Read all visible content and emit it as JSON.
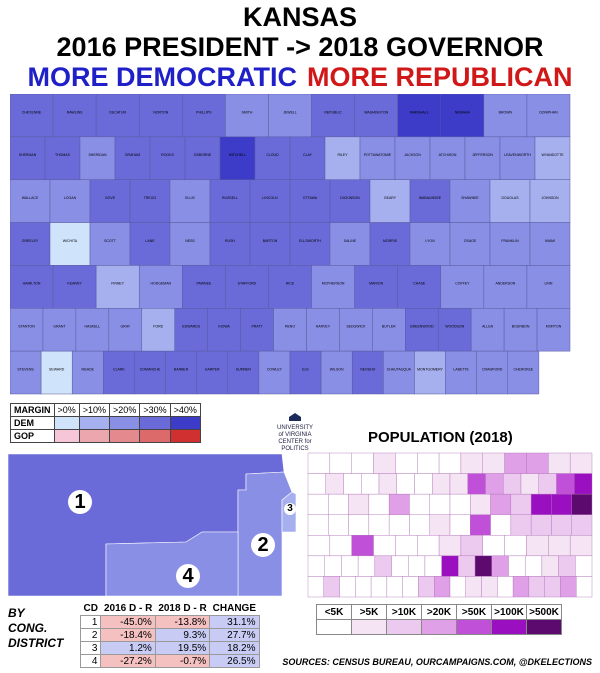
{
  "title": {
    "line1": "KANSAS",
    "line2": "2016 PRESIDENT -> 2018 GOVERNOR",
    "more_dem": "MORE DEMOCRATIC",
    "more_gop": "MORE REPUBLICAN"
  },
  "colors": {
    "dem_0": "#cfe3fb",
    "dem_10": "#a6b0ee",
    "dem_20": "#8a8fe6",
    "dem_30": "#6a6ad8",
    "dem_40": "#3c3cc8",
    "gop_0": "#f6c6d8",
    "gop_10": "#eca6ad",
    "gop_20": "#e48a8e",
    "gop_30": "#dc6a6a",
    "gop_40": "#d03030",
    "pop_5k_less": "#ffffff",
    "pop_5k": "#f4e4f4",
    "pop_10k": "#eccaf0",
    "pop_20k": "#e0a0e8",
    "pop_50k": "#c050d8",
    "pop_100k": "#9a10c0",
    "pop_500k": "#5c0a6e"
  },
  "legend": {
    "margin_label": "MARGIN",
    "dem_label": "DEM",
    "gop_label": "GOP",
    "bins": [
      ">0%",
      ">10%",
      ">20%",
      ">30%",
      ">40%"
    ]
  },
  "logo_text": "UNIVERSITY of VIRGINIA CENTER for POLITICS",
  "population": {
    "title": "POPULATION (2018)",
    "bins": [
      "<5K",
      ">5K",
      ">10K",
      ">20K",
      ">50K",
      ">100K",
      ">500K"
    ]
  },
  "districts": {
    "heading": [
      "BY",
      "CONG.",
      "DISTRICT"
    ],
    "labels": [
      "1",
      "2",
      "3",
      "4"
    ],
    "columns": [
      "CD",
      "2016 D - R",
      "2018 D - R",
      "CHANGE"
    ],
    "rows": [
      {
        "cd": "1",
        "d2016": "-45.0%",
        "d2018": "-13.8%",
        "change": "31.1%"
      },
      {
        "cd": "2",
        "d2016": "-18.4%",
        "d2018": "9.3%",
        "change": "27.7%"
      },
      {
        "cd": "3",
        "d2016": "1.2%",
        "d2018": "19.5%",
        "change": "18.2%"
      },
      {
        "cd": "4",
        "d2016": "-27.2%",
        "d2018": "-0.7%",
        "change": "26.5%"
      }
    ]
  },
  "sources": "SOURCES: CENSUS BUREAU, OURCAMPAIGNS.COM, @DKELECTIONS",
  "counties": [
    {
      "name": "CHEYENNE",
      "shade": 3
    },
    {
      "name": "RAWLINS",
      "shade": 3
    },
    {
      "name": "DECATUR",
      "shade": 3
    },
    {
      "name": "NORTON",
      "shade": 3
    },
    {
      "name": "PHILLIPS",
      "shade": 3
    },
    {
      "name": "SMITH",
      "shade": 2
    },
    {
      "name": "JEWELL",
      "shade": 2
    },
    {
      "name": "REPUBLIC",
      "shade": 3
    },
    {
      "name": "WASHINGTON",
      "shade": 3
    },
    {
      "name": "MARSHALL",
      "shade": 4
    },
    {
      "name": "NEMAHA",
      "shade": 4
    },
    {
      "name": "BROWN",
      "shade": 2
    },
    {
      "name": "DONIPHAN",
      "shade": 2
    },
    {
      "name": "SHERMAN",
      "shade": 3
    },
    {
      "name": "THOMAS",
      "shade": 3
    },
    {
      "name": "SHERIDAN",
      "shade": 2
    },
    {
      "name": "GRAHAM",
      "shade": 3
    },
    {
      "name": "ROOKS",
      "shade": 3
    },
    {
      "name": "OSBORNE",
      "shade": 3
    },
    {
      "name": "MITCHELL",
      "shade": 4
    },
    {
      "name": "CLOUD",
      "shade": 3
    },
    {
      "name": "CLAY",
      "shade": 3
    },
    {
      "name": "RILEY",
      "shade": 1
    },
    {
      "name": "POTTAWATOMIE",
      "shade": 2
    },
    {
      "name": "JACKSON",
      "shade": 2
    },
    {
      "name": "ATCHISON",
      "shade": 2
    },
    {
      "name": "JEFFERSON",
      "shade": 2
    },
    {
      "name": "LEAVENWORTH",
      "shade": 2
    },
    {
      "name": "WYANDOTTE",
      "shade": 1
    },
    {
      "name": "WALLACE",
      "shade": 2
    },
    {
      "name": "LOGAN",
      "shade": 2
    },
    {
      "name": "GOVE",
      "shade": 3
    },
    {
      "name": "TREGO",
      "shade": 3
    },
    {
      "name": "ELLIS",
      "shade": 2
    },
    {
      "name": "RUSSELL",
      "shade": 3
    },
    {
      "name": "LINCOLN",
      "shade": 3
    },
    {
      "name": "OTTAWA",
      "shade": 3
    },
    {
      "name": "DICKINSON",
      "shade": 3
    },
    {
      "name": "GEARY",
      "shade": 1
    },
    {
      "name": "WABAUNSEE",
      "shade": 3
    },
    {
      "name": "SHAWNEE",
      "shade": 2
    },
    {
      "name": "DOUGLAS",
      "shade": 1
    },
    {
      "name": "JOHNSON",
      "shade": 1
    },
    {
      "name": "GREELEY",
      "shade": 3
    },
    {
      "name": "WICHITA",
      "shade": 0
    },
    {
      "name": "SCOTT",
      "shade": 2
    },
    {
      "name": "LANE",
      "shade": 3
    },
    {
      "name": "NESS",
      "shade": 2
    },
    {
      "name": "RUSH",
      "shade": 3
    },
    {
      "name": "BARTON",
      "shade": 3
    },
    {
      "name": "ELLSWORTH",
      "shade": 3
    },
    {
      "name": "SALINE",
      "shade": 2
    },
    {
      "name": "MORRIS",
      "shade": 3
    },
    {
      "name": "LYON",
      "shade": 2
    },
    {
      "name": "OSAGE",
      "shade": 2
    },
    {
      "name": "FRANKLIN",
      "shade": 2
    },
    {
      "name": "MIAMI",
      "shade": 2
    },
    {
      "name": "HAMILTON",
      "shade": 3
    },
    {
      "name": "KEARNY",
      "shade": 3
    },
    {
      "name": "FINNEY",
      "shade": 1
    },
    {
      "name": "HODGEMAN",
      "shade": 2
    },
    {
      "name": "PAWNEE",
      "shade": 3
    },
    {
      "name": "STAFFORD",
      "shade": 3
    },
    {
      "name": "RICE",
      "shade": 3
    },
    {
      "name": "MCPHERSON",
      "shade": 2
    },
    {
      "name": "MARION",
      "shade": 3
    },
    {
      "name": "CHASE",
      "shade": 3
    },
    {
      "name": "COFFEY",
      "shade": 2
    },
    {
      "name": "ANDERSON",
      "shade": 2
    },
    {
      "name": "LINN",
      "shade": 2
    },
    {
      "name": "STANTON",
      "shade": 2
    },
    {
      "name": "GRANT",
      "shade": 2
    },
    {
      "name": "HASKELL",
      "shade": 2
    },
    {
      "name": "GRAY",
      "shade": 2
    },
    {
      "name": "FORD",
      "shade": 1
    },
    {
      "name": "EDWARDS",
      "shade": 3
    },
    {
      "name": "KIOWA",
      "shade": 3
    },
    {
      "name": "PRATT",
      "shade": 3
    },
    {
      "name": "RENO",
      "shade": 2
    },
    {
      "name": "HARVEY",
      "shade": 2
    },
    {
      "name": "SEDGWICK",
      "shade": 2
    },
    {
      "name": "BUTLER",
      "shade": 2
    },
    {
      "name": "GREENWOOD",
      "shade": 3
    },
    {
      "name": "WOODSON",
      "shade": 3
    },
    {
      "name": "ALLEN",
      "shade": 2
    },
    {
      "name": "BOURBON",
      "shade": 2
    },
    {
      "name": "MORTON",
      "shade": 2
    },
    {
      "name": "STEVENS",
      "shade": 2
    },
    {
      "name": "SEWARD",
      "shade": 0
    },
    {
      "name": "MEADE",
      "shade": 2
    },
    {
      "name": "CLARK",
      "shade": 3
    },
    {
      "name": "COMANCHE",
      "shade": 3
    },
    {
      "name": "BARBER",
      "shade": 3
    },
    {
      "name": "HARPER",
      "shade": 3
    },
    {
      "name": "SUMNER",
      "shade": 3
    },
    {
      "name": "COWLEY",
      "shade": 2
    },
    {
      "name": "ELK",
      "shade": 3
    },
    {
      "name": "WILSON",
      "shade": 2
    },
    {
      "name": "NEOSHO",
      "shade": 3
    },
    {
      "name": "CHAUTAUQUA",
      "shade": 2
    },
    {
      "name": "MONTGOMERY",
      "shade": 1
    },
    {
      "name": "LABETTE",
      "shade": 2
    },
    {
      "name": "CRAWFORD",
      "shade": 2
    },
    {
      "name": "CHEROKEE",
      "shade": 2
    }
  ]
}
